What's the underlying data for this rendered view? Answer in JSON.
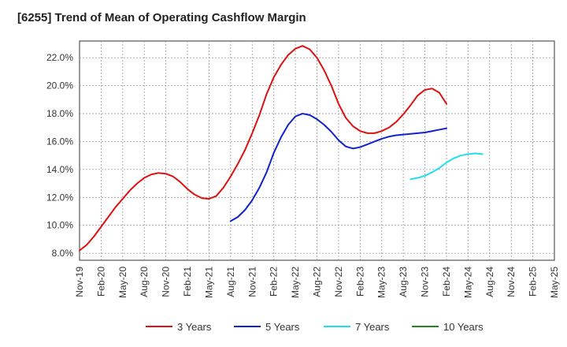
{
  "chart_data": {
    "type": "line",
    "title": "[6255]  Trend of Mean of Operating Cashflow Margin",
    "xlabel": "",
    "ylabel": "",
    "x_ticks": [
      "Nov-19",
      "Feb-20",
      "May-20",
      "Aug-20",
      "Nov-20",
      "Feb-21",
      "May-21",
      "Aug-21",
      "Nov-21",
      "Feb-22",
      "May-22",
      "Aug-22",
      "Nov-22",
      "Feb-23",
      "May-23",
      "Aug-23",
      "Nov-23",
      "Feb-24",
      "May-24",
      "Aug-24",
      "Nov-24",
      "Feb-25",
      "May-25"
    ],
    "y_ticks": [
      "8.0%",
      "10.0%",
      "12.0%",
      "14.0%",
      "16.0%",
      "18.0%",
      "20.0%",
      "22.0%"
    ],
    "ylim": [
      7.5,
      23.2
    ],
    "grid": true,
    "legend_position": "bottom",
    "series": [
      {
        "name": "3 Years",
        "color": "#dd1111",
        "start_index": 0,
        "values": [
          8.2,
          8.6,
          9.2,
          9.9,
          10.6,
          11.3,
          11.9,
          12.5,
          13.0,
          13.4,
          13.65,
          13.75,
          13.7,
          13.5,
          13.1,
          12.6,
          12.2,
          11.95,
          11.9,
          12.1,
          12.7,
          13.5,
          14.4,
          15.4,
          16.6,
          17.9,
          19.4,
          20.6,
          21.5,
          22.2,
          22.65,
          22.85,
          22.6,
          22.0,
          21.1,
          20.0,
          18.7,
          17.7,
          17.1,
          16.75,
          16.6,
          16.6,
          16.75,
          17.0,
          17.4,
          17.95,
          18.6,
          19.3,
          19.7,
          19.8,
          19.5,
          18.7
        ]
      },
      {
        "name": "5 Years",
        "color": "#1122cc",
        "start_index": 21,
        "values": [
          10.3,
          10.6,
          11.1,
          11.8,
          12.7,
          13.8,
          15.2,
          16.3,
          17.2,
          17.8,
          18.0,
          17.9,
          17.6,
          17.2,
          16.7,
          16.1,
          15.65,
          15.5,
          15.6,
          15.8,
          16.0,
          16.2,
          16.35,
          16.45,
          16.5,
          16.55,
          16.6,
          16.65,
          16.75,
          16.85,
          16.95
        ]
      },
      {
        "name": "7 Years",
        "color": "#22ddee",
        "start_index": 46,
        "values": [
          13.3,
          13.4,
          13.55,
          13.8,
          14.1,
          14.5,
          14.8,
          15.0,
          15.1,
          15.15,
          15.1
        ]
      },
      {
        "name": "10 Years",
        "color": "#228822",
        "start_index": 0,
        "values": []
      }
    ]
  }
}
